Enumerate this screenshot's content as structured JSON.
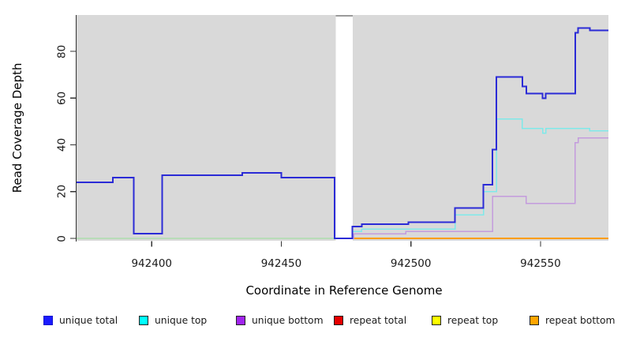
{
  "figure": {
    "y_axis_title": "Read Coverage Depth",
    "x_axis_title": "Coordinate in Reference Genome"
  },
  "chart_data": {
    "type": "line",
    "subtype": "step-function-read-coverage",
    "title": "",
    "xlabel": "Coordinate in Reference Genome",
    "ylabel": "Read Coverage Depth",
    "xlim": [
      942371,
      942576.2
    ],
    "ylim": [
      0,
      95
    ],
    "x_ticks": [
      942400,
      942450,
      942500,
      942550
    ],
    "x_tick_labels": [
      "942400",
      "942450",
      "942500",
      "942550"
    ],
    "y_ticks": [
      0,
      20,
      40,
      60,
      80
    ],
    "y_tick_labels": [
      "0",
      "20",
      "40",
      "60",
      "80"
    ],
    "grid": false,
    "legend_position": "bottom",
    "panel_background": "#d9d9d9",
    "masked_region": {
      "from": 942471,
      "to": 942477.5,
      "color": "#ffffff"
    },
    "series": [
      {
        "name": "zero baseline left of gap",
        "color": "#98e098",
        "width": 1.4,
        "steps": [
          [
            942371,
            0
          ],
          [
            942471,
            0
          ]
        ]
      },
      {
        "name": "repeat bottom",
        "color": "#ff9d00",
        "width": 2,
        "steps": [
          [
            942477.5,
            0
          ],
          [
            942576.2,
            0
          ]
        ]
      },
      {
        "name": "unique bottom",
        "color": "#c49bdd",
        "width": 1.5,
        "steps": [
          [
            942477.5,
            0
          ],
          [
            942478,
            2
          ],
          [
            942498,
            3
          ],
          [
            942531.5,
            18
          ],
          [
            942544.5,
            15
          ],
          [
            942563.4,
            41
          ],
          [
            942564.5,
            43
          ],
          [
            942576.2,
            43
          ]
        ]
      },
      {
        "name": "unique top",
        "color": "#7fe9e9",
        "width": 1.5,
        "steps": [
          [
            942477.3,
            0
          ],
          [
            942477.4,
            3
          ],
          [
            942481,
            4
          ],
          [
            942517,
            10
          ],
          [
            942528,
            20
          ],
          [
            942533,
            51
          ],
          [
            942543,
            47
          ],
          [
            942550.8,
            45
          ],
          [
            942552,
            47
          ],
          [
            942569,
            46
          ],
          [
            942576.2,
            46
          ]
        ]
      },
      {
        "name": "unique total",
        "color": "#2b2bd6",
        "width": 2,
        "steps": [
          [
            942371,
            24
          ],
          [
            942385,
            26
          ],
          [
            942393,
            2
          ],
          [
            942404,
            27
          ],
          [
            942435,
            28
          ],
          [
            942450,
            26
          ],
          [
            942470.5,
            0
          ],
          [
            942477.4,
            5
          ],
          [
            942481,
            6
          ],
          [
            942499,
            7
          ],
          [
            942517,
            13
          ],
          [
            942528,
            23
          ],
          [
            942531.5,
            38
          ],
          [
            942533,
            69
          ],
          [
            942543,
            65
          ],
          [
            942544.5,
            62
          ],
          [
            942550.8,
            60
          ],
          [
            942552,
            62
          ],
          [
            942563.4,
            88
          ],
          [
            942564.5,
            90
          ],
          [
            942569,
            89
          ],
          [
            942576.2,
            89
          ]
        ]
      }
    ],
    "repeat_series_at_zero": [
      "repeat total",
      "repeat top"
    ]
  },
  "legend": {
    "items": [
      {
        "label": "unique total",
        "swatch_fill": "#1a1aff",
        "swatch_border": "#1515cc"
      },
      {
        "label": "unique top",
        "swatch_fill": "#00ffff",
        "swatch_border": "#222222"
      },
      {
        "label": "unique bottom",
        "swatch_fill": "#a124f0",
        "swatch_border": "#222222"
      },
      {
        "label": "repeat total",
        "swatch_fill": "#e60000",
        "swatch_border": "#222222"
      },
      {
        "label": "repeat top",
        "swatch_fill": "#ffff00",
        "swatch_border": "#222222"
      },
      {
        "label": "repeat bottom",
        "swatch_fill": "#ffa500",
        "swatch_border": "#222222"
      }
    ]
  }
}
